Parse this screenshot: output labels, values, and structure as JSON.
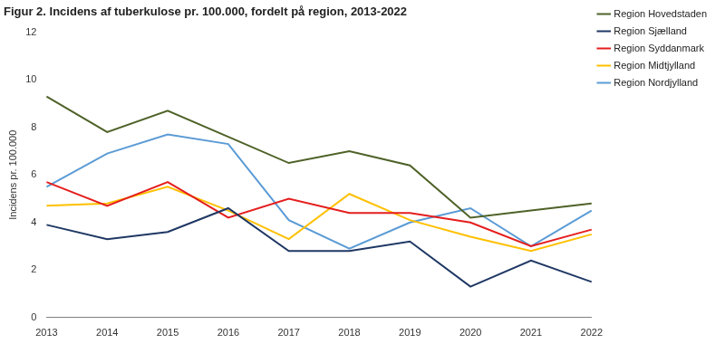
{
  "chart_data": {
    "type": "line",
    "title": "Figur 2. Incidens af tuberkulose pr. 100.000, fordelt på region, 2013-2022",
    "y_label": "Incidens pr. 100.000",
    "categories": [
      "2013",
      "2014",
      "2015",
      "2016",
      "2017",
      "2018",
      "2019",
      "2020",
      "2021",
      "2022"
    ],
    "series": [
      {
        "name": "Region Hovedstaden",
        "color": "#4f6228",
        "values": [
          9.3,
          7.8,
          8.7,
          7.6,
          6.5,
          7.0,
          6.4,
          4.2,
          4.5,
          4.8
        ]
      },
      {
        "name": "Region Sjælland",
        "color": "#1f3864",
        "values": [
          3.9,
          3.3,
          3.6,
          4.6,
          2.8,
          2.8,
          3.2,
          1.3,
          2.4,
          1.5
        ]
      },
      {
        "name": "Region Syddanmark",
        "color": "#e41e1e",
        "values": [
          5.7,
          4.7,
          5.7,
          4.2,
          5.0,
          4.4,
          4.4,
          4.0,
          3.0,
          3.7
        ]
      },
      {
        "name": "Region Midtjylland",
        "color": "#ffc000",
        "values": [
          4.7,
          4.8,
          5.5,
          4.5,
          3.3,
          5.2,
          4.1,
          3.4,
          2.8,
          3.5
        ]
      },
      {
        "name": "Region Nordjylland",
        "color": "#5b9bd5",
        "values": [
          5.5,
          6.9,
          7.7,
          7.3,
          4.1,
          2.9,
          4.0,
          4.6,
          3.0,
          4.5
        ]
      }
    ],
    "ylim": [
      0,
      12
    ],
    "yticks": [
      0,
      2,
      4,
      6,
      8,
      10,
      12
    ],
    "grid": false,
    "legend": "right"
  }
}
